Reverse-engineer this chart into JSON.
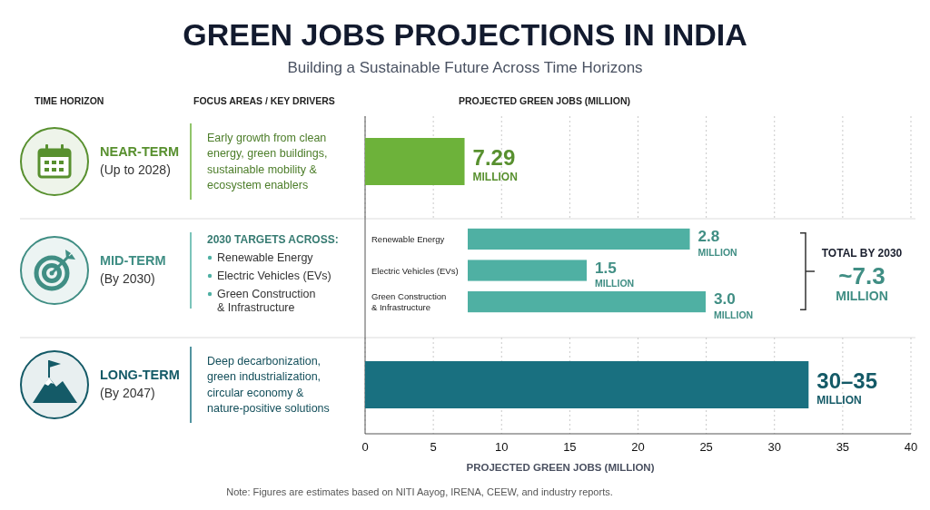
{
  "chart_data": [
    {
      "type": "other",
      "title": "GREEN JOBS PROJECTIONS IN INDIA",
      "subtitle": "Building a Sustainable Future Across Time Horizons",
      "annotations": [
        "TIME HORIZON",
        "FOCUS AREAS / KEY DRIVERS",
        "PROJECTED GREEN JOBS (MILLION)"
      ]
    },
    {
      "type": "bar",
      "orientation": "horizontal",
      "ylabel": "NEAR-TERM (Up to 2028)",
      "annotations": [
        "Early growth from clean energy, green buildings, sustainable mobility & ecosystem enablers"
      ],
      "categories": [
        null
      ],
      "values": [
        7.29
      ],
      "value_labels": [
        "7.29 MILLION"
      ],
      "color": "#6db23a",
      "xlim": [
        0,
        40
      ],
      "xticks": [
        0,
        5,
        10,
        15,
        20,
        25,
        30,
        35,
        40
      ],
      "grid": "x",
      "tick_labels": false
    },
    {
      "type": "bar",
      "orientation": "horizontal",
      "ylabel": "MID-TERM (By 2030)",
      "annotations": [
        "2030 TARGETS ACROSS:",
        "TOTAL BY 2030",
        "~7.3 MILLION"
      ],
      "categories": [
        "Renewable Energy",
        "Electric Vehicles (EVs)",
        "Green Construction & Infrastructure"
      ],
      "values": [
        2.8,
        1.5,
        3.0
      ],
      "value_labels": [
        "2.8 MILLION",
        "1.5 MILLION",
        "3.0 MILLION"
      ],
      "color": "#4fb0a3"
    },
    {
      "type": "bar",
      "orientation": "horizontal",
      "ylabel": "LONG-TERM (By 2047)",
      "annotations": [
        "Deep decarbonization, green industrialization, circular economy & nature-positive solutions"
      ],
      "categories": [
        null
      ],
      "values": [
        32.5
      ],
      "value_labels": [
        "30–35 MILLION"
      ],
      "color": "#197080",
      "xlim": [
        0,
        40
      ],
      "xticks": [
        0,
        5,
        10,
        15,
        20,
        25,
        30,
        35,
        40
      ],
      "xlabel": "PROJECTED GREEN JOBS (MILLION)",
      "grid": "x",
      "tick_labels": "x"
    },
    {
      "type": "other",
      "annotations": [
        "Note: Figures are estimates based on NITI Aayog, IRENA, CEEW, and industry reports."
      ]
    }
  ]
}
